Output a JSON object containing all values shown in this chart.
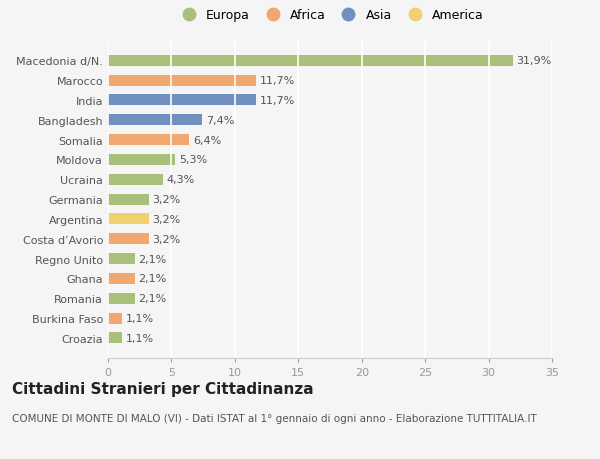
{
  "categories": [
    "Croazia",
    "Burkina Faso",
    "Romania",
    "Ghana",
    "Regno Unito",
    "Costa d’Avorio",
    "Argentina",
    "Germania",
    "Ucraina",
    "Moldova",
    "Somalia",
    "Bangladesh",
    "India",
    "Marocco",
    "Macedonia d/N."
  ],
  "values": [
    1.1,
    1.1,
    2.1,
    2.1,
    2.1,
    3.2,
    3.2,
    3.2,
    4.3,
    5.3,
    6.4,
    7.4,
    11.7,
    11.7,
    31.9
  ],
  "colors": [
    "#a8c07a",
    "#f0a870",
    "#a8c07a",
    "#f0a870",
    "#a8c07a",
    "#f0a870",
    "#f0d070",
    "#a8c07a",
    "#a8c07a",
    "#a8c07a",
    "#f0a870",
    "#7090c0",
    "#7090c0",
    "#f0a870",
    "#a8c07a"
  ],
  "label_texts": [
    "1,1%",
    "1,1%",
    "2,1%",
    "2,1%",
    "2,1%",
    "3,2%",
    "3,2%",
    "3,2%",
    "4,3%",
    "5,3%",
    "6,4%",
    "7,4%",
    "11,7%",
    "11,7%",
    "31,9%"
  ],
  "legend_labels": [
    "Europa",
    "Africa",
    "Asia",
    "America"
  ],
  "legend_colors": [
    "#a8c07a",
    "#f0a870",
    "#7090c0",
    "#f0d070"
  ],
  "xlim": [
    0,
    35
  ],
  "xticks": [
    0,
    5,
    10,
    15,
    20,
    25,
    30,
    35
  ],
  "title": "Cittadini Stranieri per Cittadinanza",
  "subtitle": "COMUNE DI MONTE DI MALO (VI) - Dati ISTAT al 1° gennaio di ogni anno - Elaborazione TUTTITALIA.IT",
  "bg_color": "#f5f5f5",
  "grid_color": "#ffffff",
  "bar_height": 0.55,
  "label_fontsize": 8,
  "yticklabel_fontsize": 8,
  "xticklabel_fontsize": 8,
  "title_fontsize": 11,
  "subtitle_fontsize": 7.5
}
